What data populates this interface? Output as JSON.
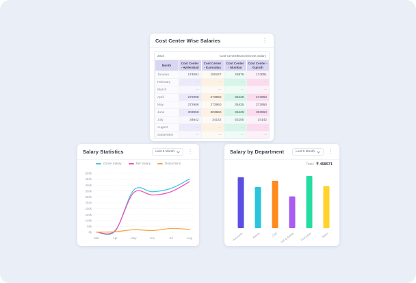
{
  "theme": {
    "background": "#E9EEF7",
    "card_background": "#FFFFFF",
    "table_header_bg": "#D9D6F1"
  },
  "icons": {
    "kebab": "⋮"
  },
  "cost_center_card": {
    "title": "Cost Center Wise Salaries",
    "year": "2024",
    "header_note": "Cost Center/Branch/Gross Salary",
    "columns": [
      "Month",
      "Cost Center - Hyderabad",
      "Cost Center - Karnataka",
      "Cost Center - Mumbai",
      "Cost Center - Gujrath"
    ],
    "rows": [
      [
        "January",
        "174091",
        "150247",
        "26876",
        "174051"
      ],
      [
        "February",
        "---",
        "---",
        "---",
        "---"
      ],
      [
        "March",
        "---",
        "---",
        "---",
        "---"
      ],
      [
        "April",
        "272908",
        "273950",
        "35425",
        "273950"
      ],
      [
        "May",
        "272908",
        "273950",
        "35425",
        "273950"
      ],
      [
        "June",
        "303958",
        "303550",
        "35425",
        "303550"
      ],
      [
        "July",
        "34642",
        "34142",
        "53150",
        "34142"
      ],
      [
        "August",
        "---",
        "---",
        "---",
        "---"
      ],
      [
        "September",
        "---",
        "---",
        "---",
        "---"
      ]
    ]
  },
  "salary_statistics_card": {
    "title": "Salary Statistics",
    "period": "Last 6 Month"
  },
  "salary_by_department_card": {
    "title": "Salary by Department",
    "period": "Last 6 Month",
    "total_label": "Total:",
    "total_value": "₹ 458571"
  },
  "chart_data": [
    {
      "id": "salary-statistics",
      "type": "line",
      "title": "Salary Statistics",
      "x": [
        "Mar",
        "Apr",
        "May",
        "Jun",
        "Jul",
        "Aug"
      ],
      "series": [
        {
          "name": "Gross Salary",
          "color": "#41C7E6",
          "values": [
            2000,
            9000,
            358000,
            344000,
            372000,
            452000
          ]
        },
        {
          "name": "Net Salary",
          "color": "#F050B4",
          "values": [
            2000,
            14000,
            336000,
            316000,
            344000,
            430000
          ]
        },
        {
          "name": "Deductions",
          "color": "#F8A44C",
          "values": [
            1500,
            4000,
            22000,
            15000,
            32000,
            25000
          ]
        }
      ],
      "ylim": [
        0,
        500000
      ],
      "ytick_step": 50000,
      "ytick_suffix": "k",
      "grid": "horizontal-dashed",
      "legend_position": "top"
    },
    {
      "id": "salary-by-department",
      "type": "bar",
      "title": "Salary by Department",
      "categories": [
        "Accounts",
        "Admin",
        "Civil",
        "HR & Admin",
        "Purchase",
        "Sales"
      ],
      "values": [
        98,
        79,
        91,
        61,
        100,
        81
      ],
      "colors": [
        "#5B4FE3",
        "#2AC5DB",
        "#FF8A1E",
        "#A95CF2",
        "#27DCA3",
        "#FFD22E"
      ],
      "ylim": [
        0,
        100
      ],
      "grid": "baseline-dashed",
      "legend_position": "none"
    }
  ]
}
